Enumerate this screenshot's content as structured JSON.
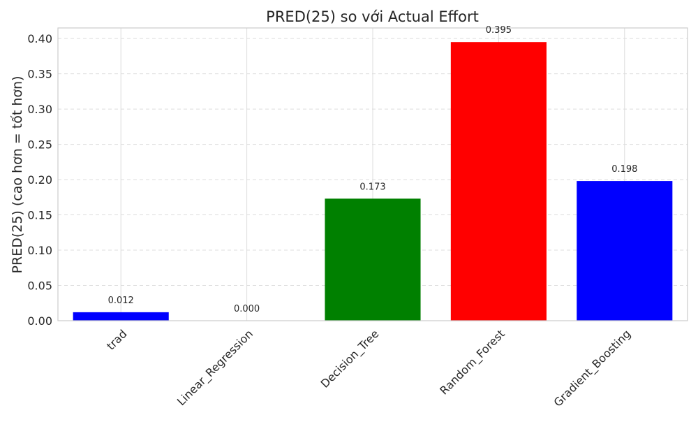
{
  "chart_data": {
    "type": "bar",
    "title": "PRED(25) so với Actual Effort",
    "xlabel": "",
    "ylabel": "PRED(25) (cao hơn = tốt hơn)",
    "categories": [
      "trad",
      "Linear_Regression",
      "Decision_Tree",
      "Random_Forest",
      "Gradient_Boosting"
    ],
    "values": [
      0.012,
      0.0,
      0.173,
      0.395,
      0.198
    ],
    "value_labels": [
      "0.012",
      "0.000",
      "0.173",
      "0.395",
      "0.198"
    ],
    "colors": [
      "#0000ff",
      "#0000ff",
      "#008000",
      "#ff0000",
      "#0000ff"
    ],
    "ylim": [
      0,
      0.415
    ],
    "yticks": [
      0.0,
      0.05,
      0.1,
      0.15,
      0.2,
      0.25,
      0.3,
      0.35,
      0.4
    ],
    "ytick_labels": [
      "0.00",
      "0.05",
      "0.10",
      "0.15",
      "0.20",
      "0.25",
      "0.30",
      "0.35",
      "0.40"
    ],
    "grid": true,
    "grid_y_style": "dashed",
    "grid_x_style": "solid"
  }
}
